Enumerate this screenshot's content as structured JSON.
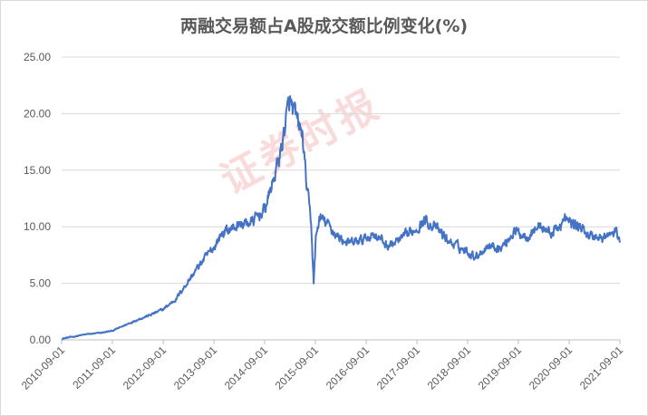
{
  "title": "两融交易额占A股成交额比例变化(%)",
  "watermark_text": "证券时报",
  "colors": {
    "series": "#4472c4",
    "grid": "#d9d9d9",
    "axis": "#bfbfbf",
    "text": "#595959",
    "watermark": "#e85a5a"
  },
  "chart_data": {
    "type": "line",
    "title": "两融交易额占A股成交额比例变化(%)",
    "xlabel": "",
    "ylabel": "",
    "ylim": [
      0,
      25
    ],
    "y_ticks": [
      "0.00",
      "5.00",
      "10.00",
      "15.00",
      "20.00",
      "25.00"
    ],
    "x_ticks": [
      "2010-09-01",
      "2011-09-01",
      "2012-09-01",
      "2013-09-01",
      "2014-09-01",
      "2015-09-01",
      "2016-09-01",
      "2017-09-01",
      "2018-09-01",
      "2019-09-01",
      "2020-09-01",
      "2021-09-01"
    ],
    "x_range": [
      "2010-09-01",
      "2021-09-01"
    ],
    "grid": "horizontal",
    "legend": "none",
    "series": [
      {
        "points": [
          [
            "2010-09-01",
            0.1
          ],
          [
            "2010-12-01",
            0.3
          ],
          [
            "2011-03-01",
            0.5
          ],
          [
            "2011-06-01",
            0.6
          ],
          [
            "2011-09-01",
            0.8
          ],
          [
            "2011-12-01",
            1.3
          ],
          [
            "2012-03-01",
            1.8
          ],
          [
            "2012-06-01",
            2.2
          ],
          [
            "2012-09-01",
            2.7
          ],
          [
            "2012-12-01",
            3.6
          ],
          [
            "2013-03-01",
            5.2
          ],
          [
            "2013-06-01",
            6.8
          ],
          [
            "2013-09-01",
            8.2
          ],
          [
            "2013-11-01",
            9.5
          ],
          [
            "2014-01-01",
            9.8
          ],
          [
            "2014-03-01",
            10.2
          ],
          [
            "2014-06-01",
            10.4
          ],
          [
            "2014-09-01",
            11.5
          ],
          [
            "2014-11-01",
            14.0
          ],
          [
            "2015-01-01",
            17.0
          ],
          [
            "2015-02-01",
            19.5
          ],
          [
            "2015-03-01",
            21.0
          ],
          [
            "2015-04-01",
            20.0
          ],
          [
            "2015-05-01",
            19.0
          ],
          [
            "2015-06-01",
            18.0
          ],
          [
            "2015-07-01",
            13.5
          ],
          [
            "2015-08-01",
            10.5
          ],
          [
            "2015-08-20",
            5.0
          ],
          [
            "2015-09-05",
            9.0
          ],
          [
            "2015-10-01",
            10.8
          ],
          [
            "2015-12-01",
            10.2
          ],
          [
            "2016-02-01",
            9.2
          ],
          [
            "2016-05-01",
            8.5
          ],
          [
            "2016-08-01",
            8.8
          ],
          [
            "2016-11-01",
            9.4
          ],
          [
            "2017-02-01",
            8.3
          ],
          [
            "2017-05-01",
            8.8
          ],
          [
            "2017-08-01",
            9.6
          ],
          [
            "2017-11-01",
            10.6
          ],
          [
            "2018-02-01",
            9.7
          ],
          [
            "2018-05-01",
            8.6
          ],
          [
            "2018-08-01",
            8.0
          ],
          [
            "2018-11-01",
            7.4
          ],
          [
            "2019-02-01",
            8.4
          ],
          [
            "2019-05-01",
            8.1
          ],
          [
            "2019-08-01",
            9.6
          ],
          [
            "2019-11-01",
            9.2
          ],
          [
            "2020-02-01",
            10.1
          ],
          [
            "2020-05-01",
            9.4
          ],
          [
            "2020-08-01",
            10.6
          ],
          [
            "2020-11-01",
            10.1
          ],
          [
            "2021-02-01",
            9.2
          ],
          [
            "2021-05-01",
            9.0
          ],
          [
            "2021-08-01",
            9.5
          ],
          [
            "2021-09-01",
            8.9
          ]
        ]
      }
    ]
  }
}
